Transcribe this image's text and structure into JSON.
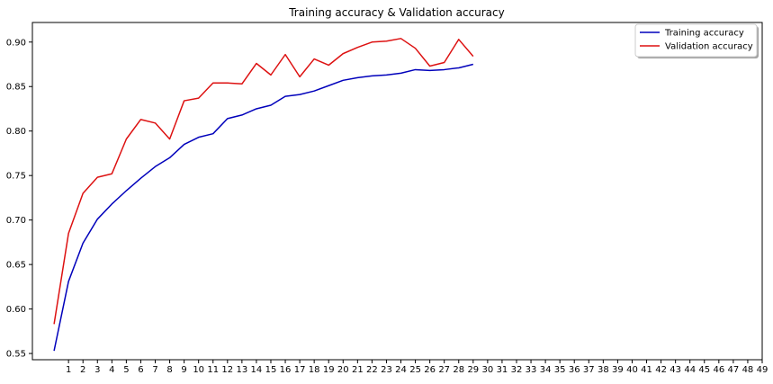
{
  "chart_data": {
    "type": "line",
    "title": "Training accuracy & Validation accuracy",
    "xlabel": "",
    "ylabel": "",
    "x": [
      0,
      1,
      2,
      3,
      4,
      5,
      6,
      7,
      8,
      9,
      10,
      11,
      12,
      13,
      14,
      15,
      16,
      17,
      18,
      19,
      20,
      21,
      22,
      23,
      24,
      25,
      26,
      27,
      28,
      29
    ],
    "x_ticks": [
      1,
      2,
      3,
      4,
      5,
      6,
      7,
      8,
      9,
      10,
      11,
      12,
      13,
      14,
      15,
      16,
      17,
      18,
      19,
      20,
      21,
      22,
      23,
      24,
      25,
      26,
      27,
      28,
      29,
      30,
      31,
      32,
      33,
      34,
      35,
      36,
      37,
      38,
      39,
      40,
      41,
      42,
      43,
      44,
      45,
      46,
      47,
      48,
      49
    ],
    "y_ticks": [
      0.55,
      0.6,
      0.65,
      0.7,
      0.75,
      0.8,
      0.85,
      0.9
    ],
    "xlim": [
      -1.5,
      49
    ],
    "ylim": [
      0.543,
      0.922
    ],
    "grid": false,
    "legend_position": "top-right",
    "series": [
      {
        "name": "Training accuracy",
        "color": "#0000bb",
        "values": [
          0.553,
          0.631,
          0.674,
          0.701,
          0.718,
          0.733,
          0.747,
          0.76,
          0.77,
          0.785,
          0.793,
          0.797,
          0.814,
          0.818,
          0.825,
          0.829,
          0.839,
          0.841,
          0.845,
          0.851,
          0.857,
          0.86,
          0.862,
          0.863,
          0.865,
          0.869,
          0.868,
          0.869,
          0.871,
          0.875
        ]
      },
      {
        "name": "Validation accuracy",
        "color": "#dd1111",
        "values": [
          0.583,
          0.685,
          0.73,
          0.748,
          0.752,
          0.791,
          0.813,
          0.809,
          0.791,
          0.834,
          0.837,
          0.854,
          0.854,
          0.853,
          0.876,
          0.863,
          0.886,
          0.861,
          0.881,
          0.874,
          0.887,
          0.894,
          0.9,
          0.901,
          0.904,
          0.893,
          0.873,
          0.877,
          0.903,
          0.884
        ]
      }
    ]
  }
}
